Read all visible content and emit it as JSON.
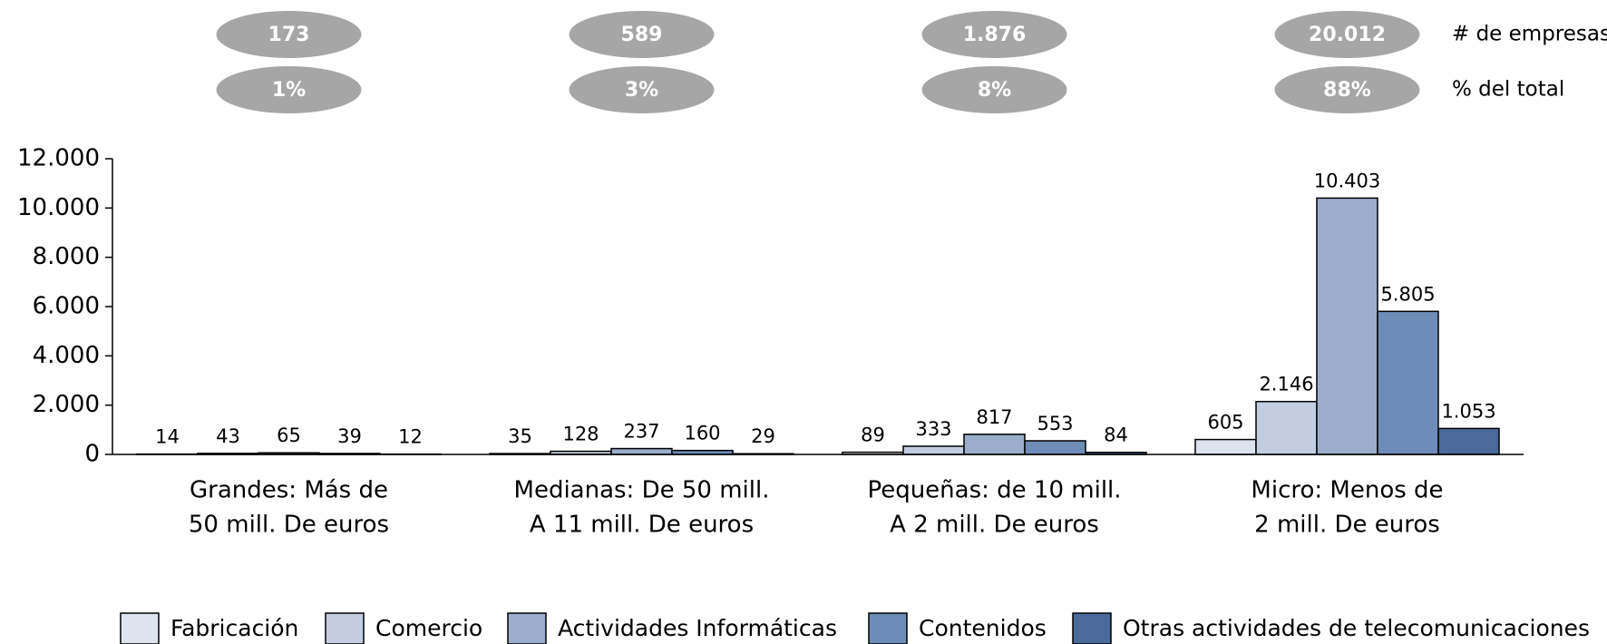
{
  "chart_data": {
    "type": "bar",
    "categories": [
      [
        "Grandes: Más de",
        "50 mill. De euros"
      ],
      [
        "Medianas: De 50 mill.",
        "A 11 mill. De euros"
      ],
      [
        "Pequeñas: de 10 mill.",
        "A 2 mill. De euros"
      ],
      [
        "Micro: Menos de",
        "2 mill. De euros"
      ]
    ],
    "series": [
      {
        "name": "Fabricación",
        "color": "#dde4ef",
        "values": [
          14,
          35,
          89,
          605
        ]
      },
      {
        "name": "Comercio",
        "color": "#c3cde0",
        "values": [
          43,
          128,
          333,
          2146
        ],
        "value_labels": [
          "43",
          "128",
          "333",
          "2.146"
        ]
      },
      {
        "name": "Actividades Informáticas",
        "color": "#9aadcc",
        "values": [
          65,
          237,
          817,
          10403
        ],
        "value_labels": [
          "65",
          "237",
          "817",
          "10.403"
        ]
      },
      {
        "name": "Contenidos",
        "color": "#6e8cb8",
        "values": [
          39,
          160,
          553,
          5805
        ],
        "value_labels": [
          "39",
          "160",
          "553",
          "5.805"
        ]
      },
      {
        "name": "Otras actividades de telecomunicaciones",
        "color": "#4a6a9a",
        "values": [
          12,
          29,
          84,
          1053
        ],
        "value_labels": [
          "12",
          "29",
          "84",
          "1.053"
        ]
      }
    ],
    "ylim": [
      0,
      12000
    ],
    "yticks": [
      0,
      {
        "value": 2000,
        "label": "2.000"
      },
      {
        "value": 4000,
        "label": "4.000"
      },
      {
        "value": 6000,
        "label": "6.000"
      },
      {
        "value": 8000,
        "label": "8.000"
      },
      {
        "value": 10000,
        "label": "10.000"
      },
      {
        "value": 12000,
        "label": "12.000"
      }
    ],
    "companies": {
      "label": "# de empresas",
      "values": [
        173,
        589,
        1876,
        20012
      ],
      "value_labels": [
        "173",
        "589",
        "1.876",
        "20.012"
      ]
    },
    "shares": {
      "label": "% del total",
      "values": [
        1,
        3,
        8,
        88
      ],
      "value_labels": [
        "1%",
        "3%",
        "8%",
        "88%"
      ]
    }
  }
}
